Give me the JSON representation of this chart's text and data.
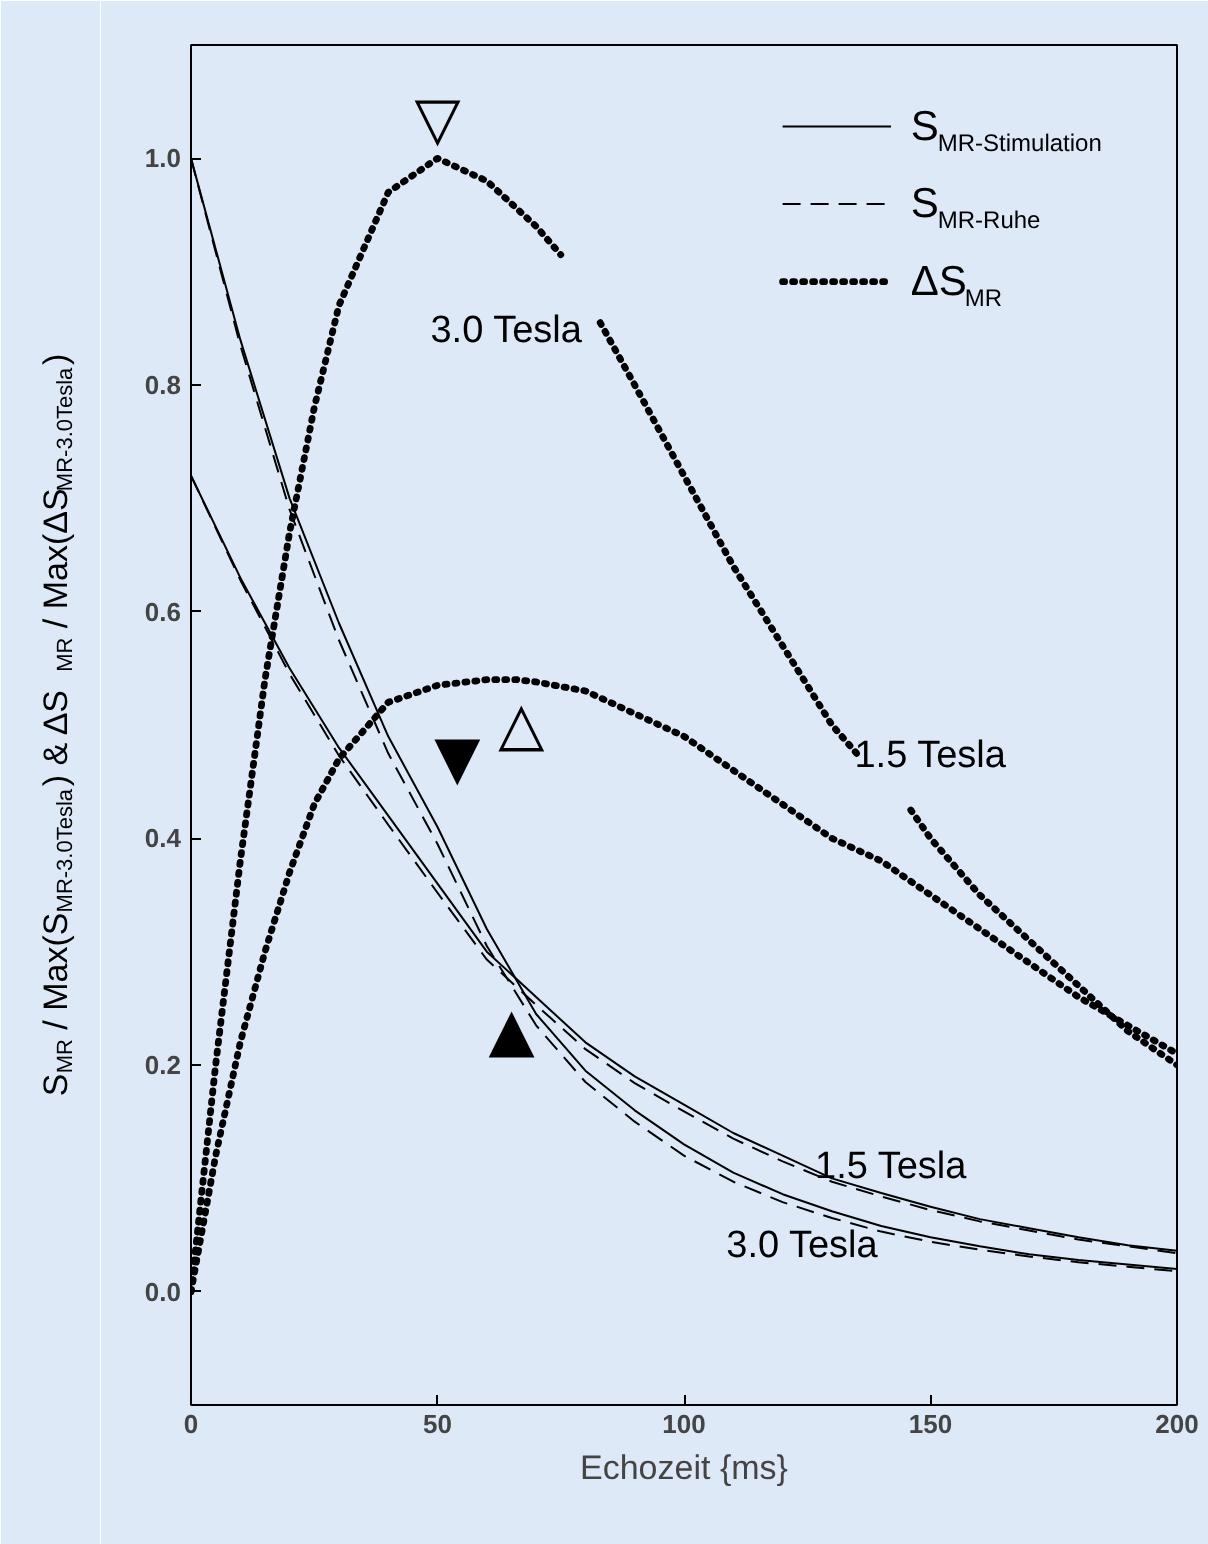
{
  "chart_data": {
    "type": "line",
    "xlabel": "Echozeit {ms}",
    "ylabel": "S$_{MR}$ / Max(S$_{MR-3.0Tesla}$)  &  ΔS$_{MR}$ / Max(ΔS$_{MR-3.0Tesla}$)",
    "xlim": [
      0,
      200
    ],
    "ylim": [
      -0.1,
      1.1
    ],
    "xticks": [
      0,
      50,
      100,
      150,
      200
    ],
    "yticks": [
      {
        "value": 0,
        "label": "0.0"
      },
      {
        "value": 0.2,
        "label": "0.2"
      },
      {
        "value": 0.4,
        "label": "0.4"
      },
      {
        "value": 0.6,
        "label": "0.6"
      },
      {
        "value": 0.8,
        "label": "0.8"
      },
      {
        "value": 1,
        "label": "1.0"
      }
    ],
    "grid": false,
    "legend": "top right",
    "x": [
      0,
      10,
      20,
      30,
      40,
      50,
      60,
      70,
      80,
      90,
      100,
      110,
      120,
      130,
      140,
      150,
      160,
      170,
      180,
      190,
      200
    ],
    "series": [
      {
        "name": "S$_{MR-Stimulation}$",
        "color": "#000000",
        "line_style": "solid",
        "values": [
          1.0,
          0.84,
          0.7,
          0.59,
          0.49,
          0.41,
          0.32,
          0.245,
          0.195,
          0.16,
          0.13,
          0.105,
          0.086,
          0.071,
          0.058,
          0.048,
          0.04,
          0.033,
          0.028,
          0.024,
          0.02
        ]
      },
      {
        "name": "S$_{MR-Ruhe}$",
        "color": "#000000",
        "line_style": "dashed",
        "values": [
          1.0,
          0.835,
          0.69,
          0.575,
          0.475,
          0.395,
          0.305,
          0.235,
          0.185,
          0.15,
          0.12,
          0.097,
          0.079,
          0.065,
          0.053,
          0.044,
          0.037,
          0.031,
          0.026,
          0.022,
          0.018
        ]
      },
      {
        "color": "#000000",
        "line_style": "solid",
        "values": [
          0.72,
          0.63,
          0.55,
          0.48,
          0.42,
          0.36,
          0.3,
          0.26,
          0.22,
          0.19,
          0.165,
          0.14,
          0.12,
          0.1,
          0.087,
          0.075,
          0.064,
          0.056,
          0.048,
          0.041,
          0.036
        ]
      },
      {
        "color": "#000000",
        "line_style": "dashed",
        "values": [
          0.72,
          0.628,
          0.545,
          0.473,
          0.412,
          0.352,
          0.293,
          0.253,
          0.214,
          0.184,
          0.159,
          0.135,
          0.115,
          0.097,
          0.084,
          0.072,
          0.062,
          0.054,
          0.046,
          0.04,
          0.034
        ]
      },
      {
        "name": "ΔS$_{MR}$",
        "color": "#000000",
        "line_style": "dotted",
        "x": [
          0,
          5,
          10,
          15,
          20,
          25,
          30,
          40,
          50,
          60,
          70,
          75,
          78,
          83,
          90,
          100,
          110,
          120,
          130,
          136,
          140,
          146,
          150,
          160,
          170,
          180,
          190,
          200
        ],
        "values": [
          0.0,
          0.2,
          0.38,
          0.54,
          0.67,
          0.78,
          0.87,
          0.97,
          1.0,
          0.98,
          0.94,
          0.915,
          null,
          0.855,
          0.8,
          0.72,
          0.64,
          0.57,
          0.5,
          0.47,
          null,
          0.425,
          0.4,
          0.35,
          0.31,
          0.27,
          0.23,
          0.2
        ]
      },
      {
        "color": "#000000",
        "line_style": "dotted",
        "x": [
          0,
          5,
          10,
          15,
          20,
          25,
          30,
          40,
          50,
          60,
          66,
          70,
          80,
          90,
          100,
          110,
          120,
          130,
          140,
          150,
          160,
          170,
          180,
          190,
          200
        ],
        "values": [
          0.0,
          0.12,
          0.22,
          0.3,
          0.37,
          0.43,
          0.47,
          0.52,
          0.535,
          0.54,
          0.54,
          0.538,
          0.53,
          0.51,
          0.49,
          0.46,
          0.43,
          0.4,
          0.38,
          0.35,
          0.32,
          0.29,
          0.26,
          0.235,
          0.21
        ]
      }
    ],
    "annotations": [
      "3.0 Tesla",
      "1.5 Tesla",
      "1.5 Tesla",
      "3.0 Tesla",
      "▽",
      "△",
      "▼",
      "▲"
    ]
  }
}
